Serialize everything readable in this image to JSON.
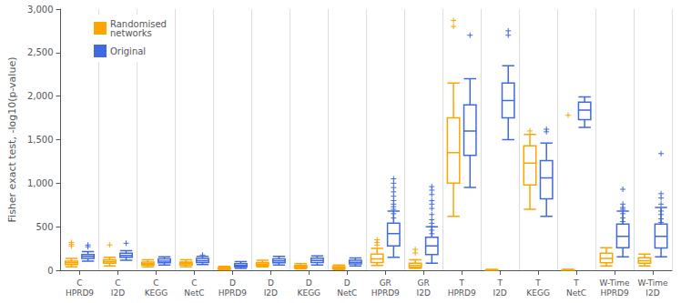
{
  "chart_data": {
    "type": "boxplot",
    "ylabel": "Fisher exact test, -log10(p-value)",
    "categories": [
      "C\nHPRD9",
      "C\nI2D",
      "C\nKEGG",
      "C\nNetC",
      "D\nHPRD9",
      "D\nI2D",
      "D\nKEGG",
      "D\nNetC",
      "GR\nHPRD9",
      "GR\nI2D",
      "T\nHPRD9",
      "T\nI2D",
      "T\nKEGG",
      "T\nNetC",
      "W-Time\nHPRD9",
      "W-Time\nI2D"
    ],
    "series": [
      {
        "name": "Randomised\nnetworks",
        "color": "#FFA500",
        "values": [
          [
            40,
            65,
            85,
            105,
            135
          ],
          [
            50,
            80,
            100,
            120,
            150
          ],
          [
            40,
            60,
            75,
            95,
            120
          ],
          [
            40,
            60,
            78,
            95,
            120
          ],
          [
            5,
            12,
            20,
            30,
            45
          ],
          [
            38,
            55,
            70,
            90,
            115
          ],
          [
            15,
            25,
            38,
            55,
            75
          ],
          [
            8,
            18,
            28,
            42,
            60
          ],
          [
            55,
            90,
            130,
            185,
            250
          ],
          [
            20,
            35,
            55,
            80,
            120
          ],
          [
            620,
            1000,
            1350,
            1750,
            2150
          ],
          [
            0,
            0,
            2,
            5,
            10
          ],
          [
            700,
            980,
            1230,
            1430,
            1560
          ],
          [
            0,
            0,
            2,
            5,
            10
          ],
          [
            50,
            85,
            135,
            195,
            260
          ],
          [
            50,
            80,
            110,
            145,
            185
          ]
        ],
        "outliers": [
          [
            280,
            300,
            320
          ],
          [
            290
          ],
          [],
          [],
          [],
          [],
          [],
          [],
          [
            290,
            320,
            350
          ],
          [
            200,
            240
          ],
          [
            2800,
            2870
          ],
          [],
          [
            1600
          ],
          [
            1780
          ],
          [],
          []
        ]
      },
      {
        "name": "Original",
        "color": "#4169E1",
        "values": [
          [
            105,
            135,
            160,
            180,
            215
          ],
          [
            115,
            150,
            170,
            195,
            225
          ],
          [
            60,
            85,
            105,
            130,
            155
          ],
          [
            65,
            90,
            110,
            135,
            160
          ],
          [
            20,
            38,
            55,
            75,
            100
          ],
          [
            60,
            85,
            108,
            130,
            160
          ],
          [
            60,
            88,
            112,
            138,
            165
          ],
          [
            50,
            72,
            92,
            115,
            140
          ],
          [
            150,
            280,
            420,
            540,
            680
          ],
          [
            80,
            180,
            280,
            380,
            500
          ],
          [
            950,
            1320,
            1600,
            1900,
            2200
          ],
          [
            1500,
            1750,
            1950,
            2150,
            2350
          ],
          [
            620,
            820,
            1060,
            1260,
            1460
          ],
          [
            1640,
            1730,
            1840,
            1930,
            1990
          ],
          [
            155,
            260,
            390,
            530,
            680
          ],
          [
            155,
            255,
            390,
            530,
            720
          ]
        ],
        "outliers": [
          [
            270,
            290
          ],
          [
            310
          ],
          [],
          [
            175
          ],
          [],
          [],
          [],
          [],
          [
            600,
            650,
            700,
            730,
            760,
            800,
            850,
            900,
            950,
            1000,
            1050
          ],
          [
            420,
            460,
            500,
            540,
            580,
            640,
            710,
            760,
            800,
            870,
            920,
            960
          ],
          [
            2700
          ],
          [
            2700,
            2750
          ],
          [
            1590,
            1620
          ],
          [],
          [
            480,
            520,
            560,
            600,
            650,
            700,
            720,
            760,
            930
          ],
          [
            550,
            590,
            640,
            680,
            760,
            830,
            880,
            1340
          ]
        ]
      }
    ],
    "ylim": [
      0,
      3000
    ],
    "yticks": [
      0,
      500,
      1000,
      1500,
      2000,
      2500,
      3000
    ],
    "grid": "x",
    "legend": "upper left"
  }
}
